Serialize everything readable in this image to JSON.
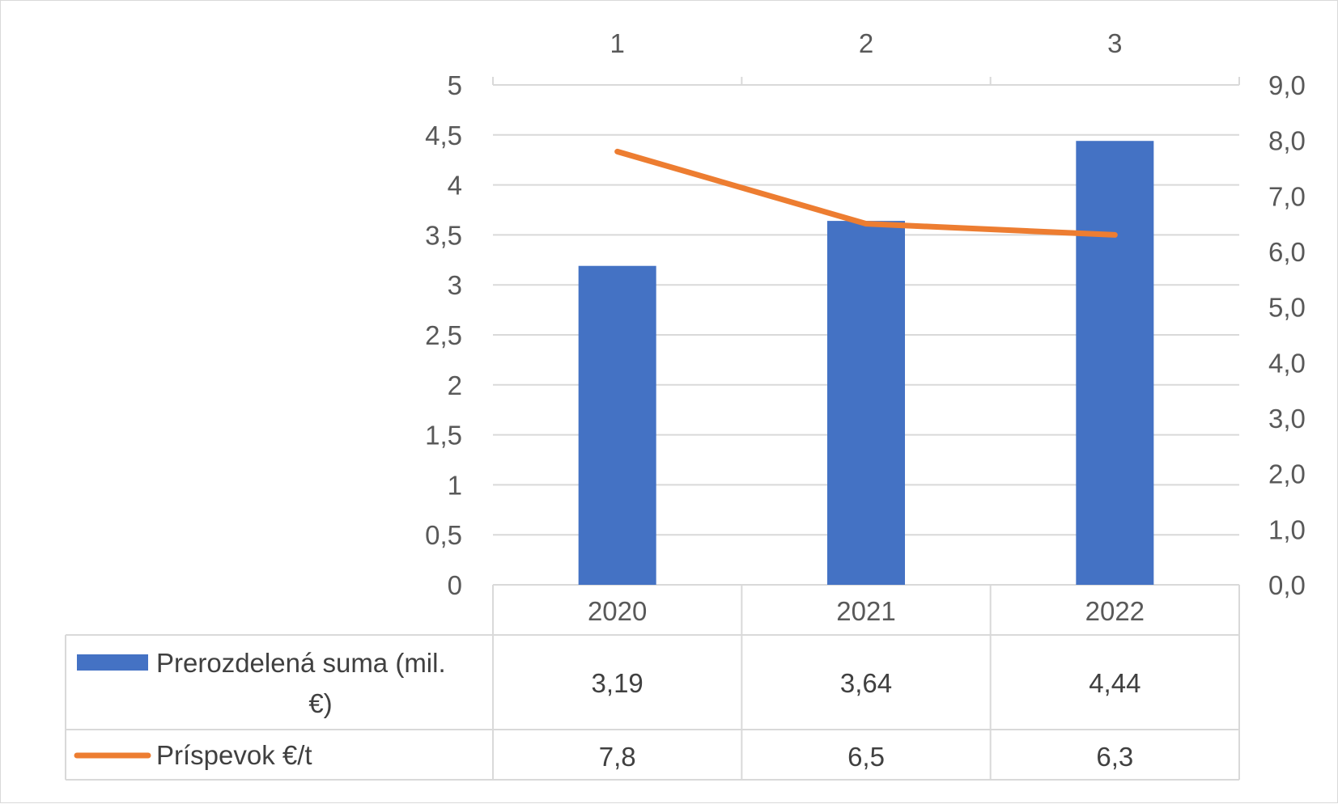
{
  "chart_data": {
    "type": "bar",
    "categories": [
      "2020",
      "2021",
      "2022"
    ],
    "secondary_x_ticks": [
      "1",
      "2",
      "3"
    ],
    "series": [
      {
        "name": "Prerozdelená suma (mil. €)",
        "type": "bar",
        "axis": "left",
        "values": [
          3.19,
          3.64,
          4.44
        ],
        "value_labels": [
          "3,19",
          "3,64",
          "4,44"
        ],
        "color": "#4472C4"
      },
      {
        "name": "Príspevok €/t",
        "type": "line",
        "axis": "right",
        "values": [
          7.8,
          6.5,
          6.3
        ],
        "value_labels": [
          "7,8",
          "6,5",
          "6,3"
        ],
        "color": "#ED7D31"
      }
    ],
    "ylim_left": [
      0,
      5
    ],
    "ylim_right": [
      0,
      9
    ],
    "left_ticks": [
      "0",
      "0,5",
      "1",
      "1,5",
      "2",
      "2,5",
      "3",
      "3,5",
      "4",
      "4,5",
      "5"
    ],
    "right_ticks": [
      "0,0",
      "1,0",
      "2,0",
      "3,0",
      "4,0",
      "5,0",
      "6,0",
      "7,0",
      "8,0",
      "9,0"
    ],
    "grid": true,
    "legend": "data-table-below",
    "gridline_color": "#d9d9d9",
    "tick_color": "#595959"
  }
}
